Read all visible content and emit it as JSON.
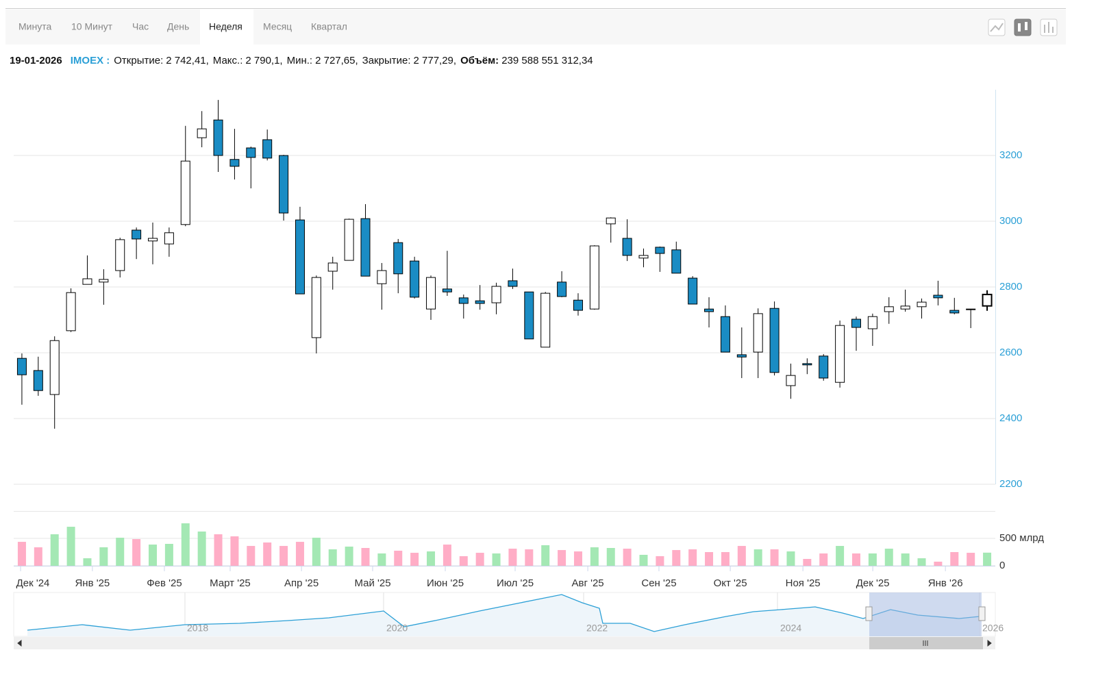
{
  "tabs": [
    "Минута",
    "10 Минут",
    "Час",
    "День",
    "Неделя",
    "Месяц",
    "Квартал"
  ],
  "active_tab": 4,
  "header": {
    "date": "19-01-2026",
    "ticker": "IMOEX :",
    "fields": [
      {
        "label": "Открытие:",
        "value": "2 742,41,"
      },
      {
        "label": "Макс.:",
        "value": "2 790,1,"
      },
      {
        "label": "Мин.:",
        "value": "2 727,65,"
      },
      {
        "label": "Закрытие:",
        "value": "2 777,29,"
      },
      {
        "label": "Объём:",
        "value": "239 588 551 312,34"
      }
    ]
  },
  "chart_data": {
    "type": "candlestick",
    "categories": [
      null,
      null,
      null,
      null,
      null,
      null,
      null,
      null,
      null,
      null,
      null,
      null,
      null,
      null,
      null,
      null,
      null,
      null,
      null,
      null,
      null,
      null,
      null,
      null,
      null,
      null,
      null,
      null,
      null,
      null,
      null,
      null,
      null,
      null,
      null,
      null,
      null,
      null,
      null,
      null,
      null,
      null,
      null,
      null,
      null,
      null,
      null,
      null,
      null,
      null,
      null,
      null,
      null,
      null,
      null,
      null,
      null,
      null,
      null,
      null
    ],
    "open": [
      2583,
      2546,
      2473,
      2667,
      2808,
      2815,
      2850,
      2973,
      2940,
      2931,
      2990,
      3254,
      3308,
      3188,
      3223,
      3248,
      3200,
      3004,
      2646,
      2848,
      2881,
      3008,
      2810,
      2935,
      2879,
      2733,
      2794,
      2767,
      2758,
      2752,
      2819,
      2785,
      2617,
      2815,
      2760,
      2733,
      2992,
      2948,
      2888,
      2921,
      2913,
      2827,
      2733,
      2710,
      2594,
      2602,
      2735,
      2500,
      2567,
      2590,
      2510,
      2702,
      2673,
      2725,
      2733,
      2740,
      2775,
      2729,
      2733,
      2742.41
    ],
    "high": [
      2598,
      2588,
      2650,
      2796,
      2896,
      2854,
      2950,
      2981,
      2996,
      2981,
      3290,
      3335,
      3369,
      3281,
      3227,
      3279,
      3202,
      3044,
      2835,
      2892,
      3008,
      3052,
      2873,
      2946,
      2892,
      2835,
      2910,
      2777,
      2806,
      2813,
      2856,
      2785,
      2785,
      2848,
      2781,
      2927,
      3012,
      3006,
      2917,
      2923,
      2938,
      2833,
      2769,
      2744,
      2677,
      2735,
      2756,
      2567,
      2583,
      2596,
      2698,
      2710,
      2719,
      2769,
      2792,
      2765,
      2819,
      2767,
      2733,
      2790.1
    ],
    "low": [
      2442,
      2469,
      2369,
      2663,
      2808,
      2746,
      2829,
      2885,
      2869,
      2892,
      2985,
      3225,
      3150,
      3127,
      3100,
      3185,
      3002,
      2779,
      2598,
      2792,
      2881,
      2833,
      2731,
      2781,
      2765,
      2700,
      2773,
      2704,
      2731,
      2717,
      2794,
      2642,
      2617,
      2769,
      2713,
      2731,
      2935,
      2879,
      2860,
      2846,
      2842,
      2748,
      2677,
      2602,
      2523,
      2523,
      2531,
      2460,
      2535,
      2515,
      2494,
      2606,
      2621,
      2688,
      2725,
      2704,
      2744,
      2717,
      2675,
      2727.65
    ],
    "close": [
      2533,
      2485,
      2637,
      2783,
      2825,
      2823,
      2944,
      2946,
      2948,
      2965,
      3183,
      3281,
      3200,
      3167,
      3194,
      3192,
      3025,
      2779,
      2829,
      2873,
      3006,
      2833,
      2850,
      2840,
      2769,
      2829,
      2785,
      2750,
      2750,
      2802,
      2802,
      2642,
      2781,
      2771,
      2729,
      2925,
      3010,
      2896,
      2896,
      2902,
      2842,
      2748,
      2725,
      2602,
      2587,
      2719,
      2540,
      2531,
      2563,
      2523,
      2683,
      2677,
      2710,
      2740,
      2742,
      2754,
      2767,
      2721,
      2731,
      2777.29
    ],
    "volume": [
      437,
      337,
      575,
      712,
      137,
      337,
      512,
      487,
      387,
      400,
      775,
      625,
      575,
      537,
      362,
      425,
      362,
      437,
      512,
      300,
      350,
      325,
      225,
      275,
      237,
      262,
      387,
      175,
      237,
      225,
      312,
      300,
      375,
      287,
      262,
      337,
      325,
      312,
      200,
      175,
      287,
      300,
      250,
      250,
      362,
      300,
      300,
      262,
      125,
      225,
      362,
      225,
      225,
      312,
      225,
      137,
      75,
      250,
      237,
      239.59
    ],
    "ylim": [
      2200,
      3400
    ],
    "yticks": [
      2200,
      2400,
      2600,
      2800,
      3000,
      3200
    ],
    "volume_lim": [
      0,
      1000
    ],
    "volume_ticks": [
      0,
      {
        "value": 500,
        "label": "500 млрд"
      }
    ],
    "xticks": [
      {
        "value": -0.08,
        "label": "Дек '24"
      },
      {
        "value": 4.31,
        "label": "Янв '25"
      },
      {
        "value": 8.71,
        "label": "Фев '25"
      },
      {
        "value": 12.73,
        "label": "Март '25"
      },
      {
        "value": 17.09,
        "label": "Апр '25"
      },
      {
        "value": 21.44,
        "label": "Май '25"
      },
      {
        "value": 25.88,
        "label": "Июн '25"
      },
      {
        "value": 30.15,
        "label": "Июл '25"
      },
      {
        "value": 34.59,
        "label": "Авг '25"
      },
      {
        "value": 38.94,
        "label": "Сен '25"
      },
      {
        "value": 43.3,
        "label": "Окт '25"
      },
      {
        "value": 47.74,
        "label": "Ноя '25"
      },
      {
        "value": 52.01,
        "label": "Дек '25"
      },
      {
        "value": 56.45,
        "label": "Янв '26"
      }
    ],
    "up_color": "#ffffff",
    "down_color": "#1a8cc4",
    "volume_up_color": "#a4e8b4",
    "volume_down_color": "#ffadc6",
    "grid": true
  },
  "navigator": {
    "labels": [
      "2018",
      "2020",
      "2022",
      "2024",
      "2026"
    ]
  }
}
